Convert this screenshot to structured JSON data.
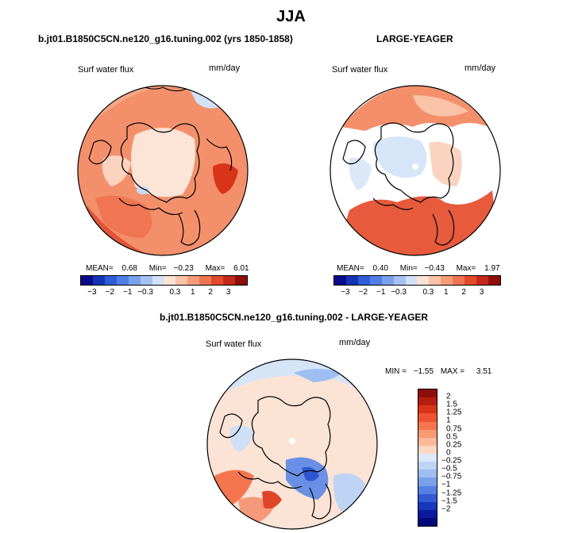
{
  "title": "JJA",
  "panels": [
    {
      "subtitle": "b.jt01.B1850C5CN.ne120_g16.tuning.002 (yrs 1850-1858)",
      "variable": "Surf water flux",
      "units": "mm/day",
      "mean_label": "MEAN=",
      "mean": "0.68",
      "min_label": "Min=",
      "min": "−0.23",
      "max_label": "Max=",
      "max": "6.01"
    },
    {
      "subtitle": "LARGE-YEAGER",
      "variable": "Surf water flux",
      "units": "mm/day",
      "mean_label": "MEAN=",
      "mean": "0.40",
      "min_label": "Min=",
      "min": "−0.43",
      "max_label": "Max=",
      "max": "1.97"
    }
  ],
  "diff_panel": {
    "subtitle": "b.jt01.B1850C5CN.ne120_g16.tuning.002 - LARGE-YEAGER",
    "variable": "Surf water flux",
    "units": "mm/day",
    "min_label": "MIN =",
    "min": "−1.55",
    "max_label": "MAX =",
    "max": "3.51"
  },
  "colorbar_top": {
    "colors": [
      "#0a0a8c",
      "#1434b4",
      "#2f5cd8",
      "#4f7fe6",
      "#7aa1ee",
      "#a6c2f3",
      "#d2e2f8",
      "#fbe3d6",
      "#fac2a6",
      "#f69d78",
      "#f07552",
      "#e24a2c",
      "#c4281a",
      "#8e0e0a"
    ],
    "labels": [
      "−3",
      "−2",
      "−1",
      "−0.3",
      "0.3",
      "1",
      "2",
      "3"
    ]
  },
  "colorbar_diff": {
    "colors": [
      "#8e0e0a",
      "#b41e10",
      "#d8341a",
      "#ee5234",
      "#f4764f",
      "#f79b74",
      "#fab99a",
      "#fcd8c2",
      "#dde9f8",
      "#bfd4f4",
      "#9ebdf0",
      "#7aa0ea",
      "#557fe2",
      "#3359d6",
      "#1a36bc",
      "#0a1aa0",
      "#04087e"
    ],
    "labels": [
      "2",
      "1.5",
      "1.25",
      "1",
      "0.75",
      "0.5",
      "0.25",
      "0",
      "−0.25",
      "−0.5",
      "−0.75",
      "−1",
      "−1.25",
      "−1.5",
      "−2"
    ]
  }
}
